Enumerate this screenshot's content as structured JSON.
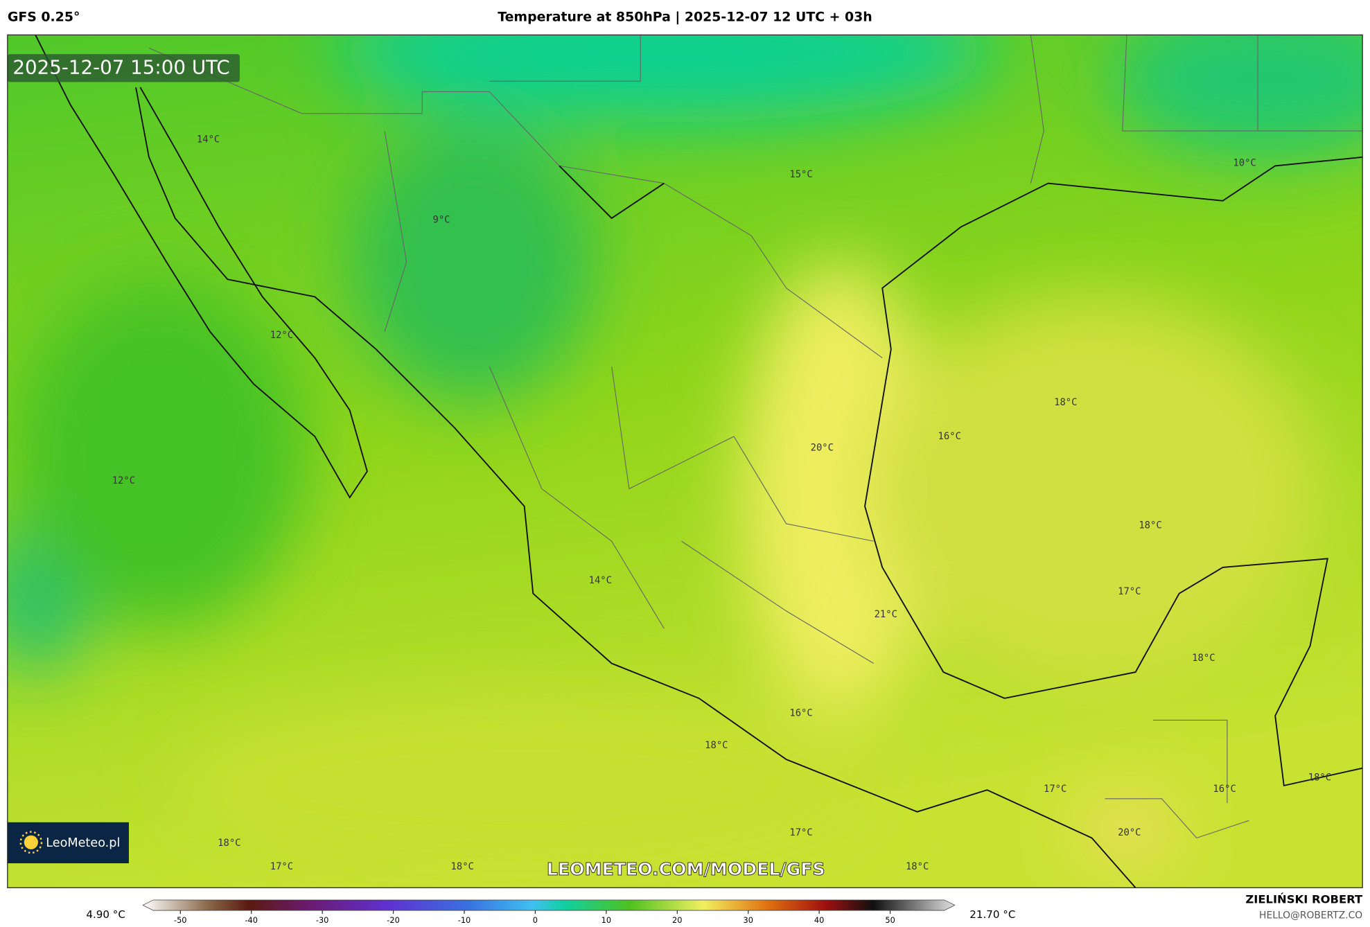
{
  "header": {
    "model": "GFS 0.25°",
    "title": "Temperature at 850hPa | 2025-12-07 12 UTC + 03h"
  },
  "map": {
    "timestamp": "2025-12-07 15:00 UTC",
    "contour_labels": [
      "14°C",
      "15°C",
      "10°C",
      "9°C",
      "12°C",
      "18°C",
      "16°C",
      "20°C",
      "12°C",
      "18°C",
      "17°C",
      "14°C",
      "21°C",
      "18°C",
      "16°C",
      "18°C",
      "17°C",
      "16°C",
      "18°C",
      "17°C",
      "20°C",
      "18°C",
      "17°C",
      "18°C",
      "18°C"
    ],
    "watermark": "LEOMETEO.COM/MODEL/GFS",
    "logo": "LeoMeteo.pl"
  },
  "colorbar": {
    "min_label": "4.90 °C",
    "max_label": "21.70 °C",
    "ticks": [
      -50,
      -40,
      -30,
      -20,
      -10,
      0,
      10,
      20,
      30,
      40,
      50
    ]
  },
  "footer": {
    "author": "ZIELIŃSKI ROBERT",
    "email": "HELLO@ROBERTZ.CO"
  }
}
